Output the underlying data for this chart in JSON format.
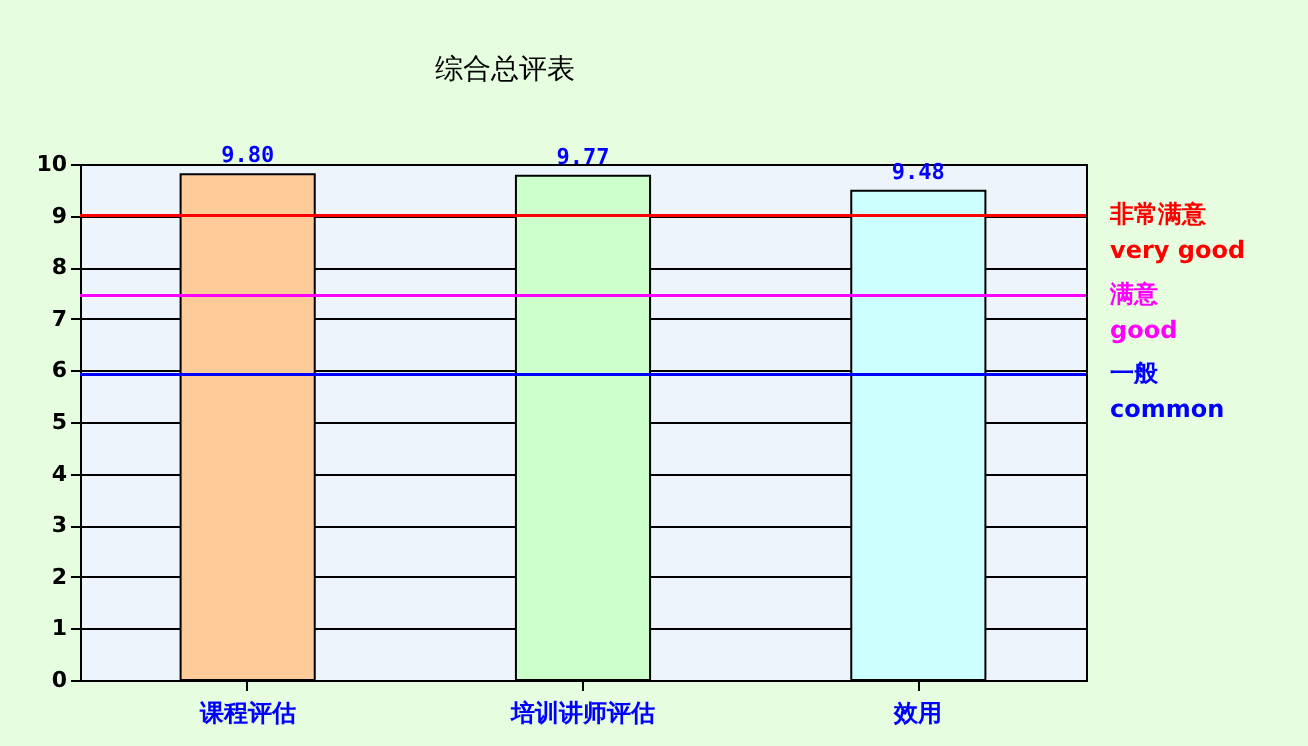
{
  "chart_data": {
    "type": "bar",
    "title": "综合总评表",
    "categories": [
      "课程评估",
      "培训讲师评估",
      "效用"
    ],
    "values": [
      9.8,
      9.77,
      9.48
    ],
    "colors": [
      "#ffcc99",
      "#ccffcc",
      "#ccffff"
    ],
    "ylim": [
      0,
      10
    ],
    "yticks": [
      0,
      1,
      2,
      3,
      4,
      5,
      6,
      7,
      8,
      9,
      10
    ],
    "grid": "y",
    "value_labels": [
      "9.80",
      "9.77",
      "9.48"
    ],
    "ref_lines": [
      {
        "axis": "y",
        "value": 9,
        "label": "非常满意\nvery good",
        "color": "#ff0000"
      },
      {
        "axis": "y",
        "value": 7.45,
        "label": "满意\ngood",
        "color": "#ff00ff"
      },
      {
        "axis": "y",
        "value": 5.92,
        "label": "一般\ncommon",
        "color": "#0000ff"
      }
    ]
  }
}
